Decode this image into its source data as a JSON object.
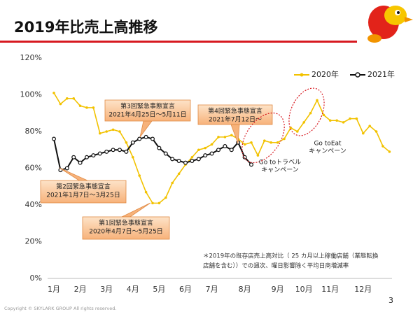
{
  "chart_data": {
    "type": "line",
    "title": "2019年比売上高推移",
    "categories": [
      "1月",
      null,
      null,
      null,
      "2月",
      null,
      null,
      null,
      "3月",
      null,
      null,
      null,
      "4月",
      null,
      null,
      null,
      "5月",
      null,
      null,
      null,
      "6月",
      null,
      null,
      null,
      "7月",
      null,
      null,
      null,
      null,
      "8月",
      null,
      null,
      null,
      null,
      "9月",
      null,
      null,
      null,
      "10月",
      null,
      null,
      null,
      "11月",
      null,
      null,
      null,
      null,
      "12月",
      null,
      null,
      null,
      null
    ],
    "series": [
      {
        "name": "2020年",
        "color": "#f2c200",
        "values": [
          101,
          95,
          98,
          98,
          94,
          93,
          93,
          79,
          80,
          81,
          80,
          74,
          66,
          56,
          47,
          41,
          41,
          44,
          52,
          57,
          62,
          66,
          70,
          71,
          73,
          77,
          77,
          78,
          76,
          73,
          74,
          67,
          75,
          74,
          74,
          76,
          82,
          80,
          85,
          90,
          97,
          89,
          86,
          86,
          85,
          87,
          87,
          79,
          83,
          80,
          72,
          69
        ]
      },
      {
        "name": "2021年",
        "color": "#111111",
        "values": [
          76,
          59,
          60,
          66,
          63,
          66,
          67,
          68,
          69,
          70,
          70,
          69,
          74,
          76,
          77,
          76,
          71,
          68,
          65,
          64,
          63,
          64,
          65,
          67,
          68,
          70,
          72,
          70,
          74,
          66,
          62,
          null,
          null,
          null,
          null,
          null,
          null,
          null,
          null,
          null,
          null,
          null,
          null,
          null,
          null,
          null,
          null,
          null,
          null,
          null,
          null,
          null
        ]
      }
    ],
    "ylim": [
      0,
      120
    ],
    "yticks": [
      {
        "value": 0,
        "label": "0%"
      },
      {
        "value": 20,
        "label": "20%"
      },
      {
        "value": 40,
        "label": "40%"
      },
      {
        "value": 60,
        "label": "60%"
      },
      {
        "value": 80,
        "label": "80%"
      },
      {
        "value": 100,
        "label": "100%"
      },
      {
        "value": 120,
        "label": "120%"
      }
    ],
    "grid": false,
    "legend": "top-right",
    "annotations": [
      {
        "lines": [
          "第3回緊急事態宣言",
          "2021年4月25日～5月11日"
        ]
      },
      {
        "lines": [
          "第4回緊急事態宣言",
          "2021年7月12日～"
        ]
      },
      {
        "lines": [
          "第2回緊急事態宣言",
          "2021年1月7日～3月25日"
        ]
      },
      {
        "lines": [
          "第1回緊急事態宣言",
          "2020年4月7日～5月25日"
        ]
      },
      {
        "lines": [
          "Go toトラベル",
          "キャンペーン"
        ]
      },
      {
        "lines": [
          "Go toEat",
          "キャンペーン"
        ]
      }
    ],
    "footnote": [
      "＊2019年の既存店売上高対比（ 25 カ月以上稼働店舗（業態転換",
      "店舗を含む））での週次、曜日影響除く平均日商増減率"
    ],
    "page_number": "3",
    "copyright": "Copyright © SKYLARK GROUP All rights reserved."
  }
}
